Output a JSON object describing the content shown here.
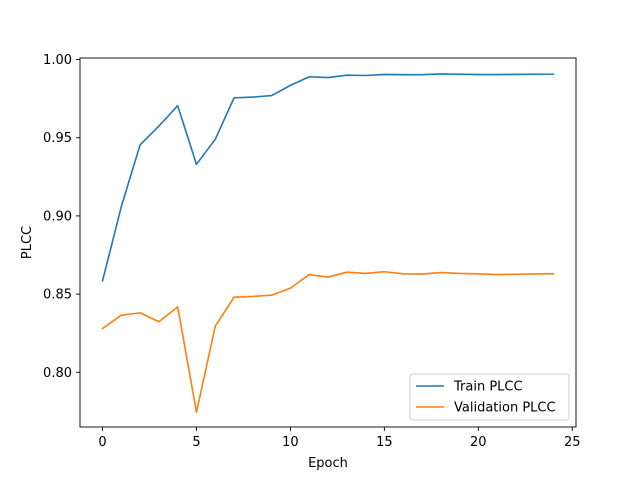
{
  "chart_data": {
    "type": "line",
    "title": "",
    "xlabel": "Epoch",
    "ylabel": "PLCC",
    "xlim": [
      -1.2,
      25.2
    ],
    "ylim": [
      0.765,
      1.001
    ],
    "xticks": [
      0,
      5,
      10,
      15,
      20,
      25
    ],
    "xtick_labels": [
      "0",
      "5",
      "10",
      "15",
      "20",
      "25"
    ],
    "yticks": [
      0.8,
      0.85,
      0.9,
      0.95,
      1.0
    ],
    "ytick_labels": [
      "0.80",
      "0.85",
      "0.90",
      "0.95",
      "1.00"
    ],
    "grid": false,
    "legend": "lower-right",
    "x": [
      0,
      1,
      2,
      3,
      4,
      5,
      6,
      7,
      8,
      9,
      10,
      11,
      12,
      13,
      14,
      15,
      16,
      17,
      18,
      19,
      20,
      21,
      22,
      23,
      24
    ],
    "series": [
      {
        "name": "Train PLCC",
        "color": "#1f77b4",
        "values": [
          0.8585,
          0.906,
          0.9455,
          0.9575,
          0.9705,
          0.933,
          0.949,
          0.9755,
          0.976,
          0.977,
          0.9835,
          0.989,
          0.9885,
          0.99,
          0.9898,
          0.9905,
          0.9903,
          0.9903,
          0.9908,
          0.9906,
          0.9904,
          0.9904,
          0.9905,
          0.9906,
          0.9906
        ]
      },
      {
        "name": "Validation PLCC",
        "color": "#ff7f0e",
        "values": [
          0.828,
          0.8365,
          0.838,
          0.8323,
          0.8418,
          0.7745,
          0.8295,
          0.848,
          0.8485,
          0.8493,
          0.8538,
          0.8625,
          0.8608,
          0.864,
          0.8632,
          0.8643,
          0.863,
          0.8628,
          0.8638,
          0.8632,
          0.863,
          0.8625,
          0.8627,
          0.8629,
          0.863
        ]
      }
    ]
  }
}
